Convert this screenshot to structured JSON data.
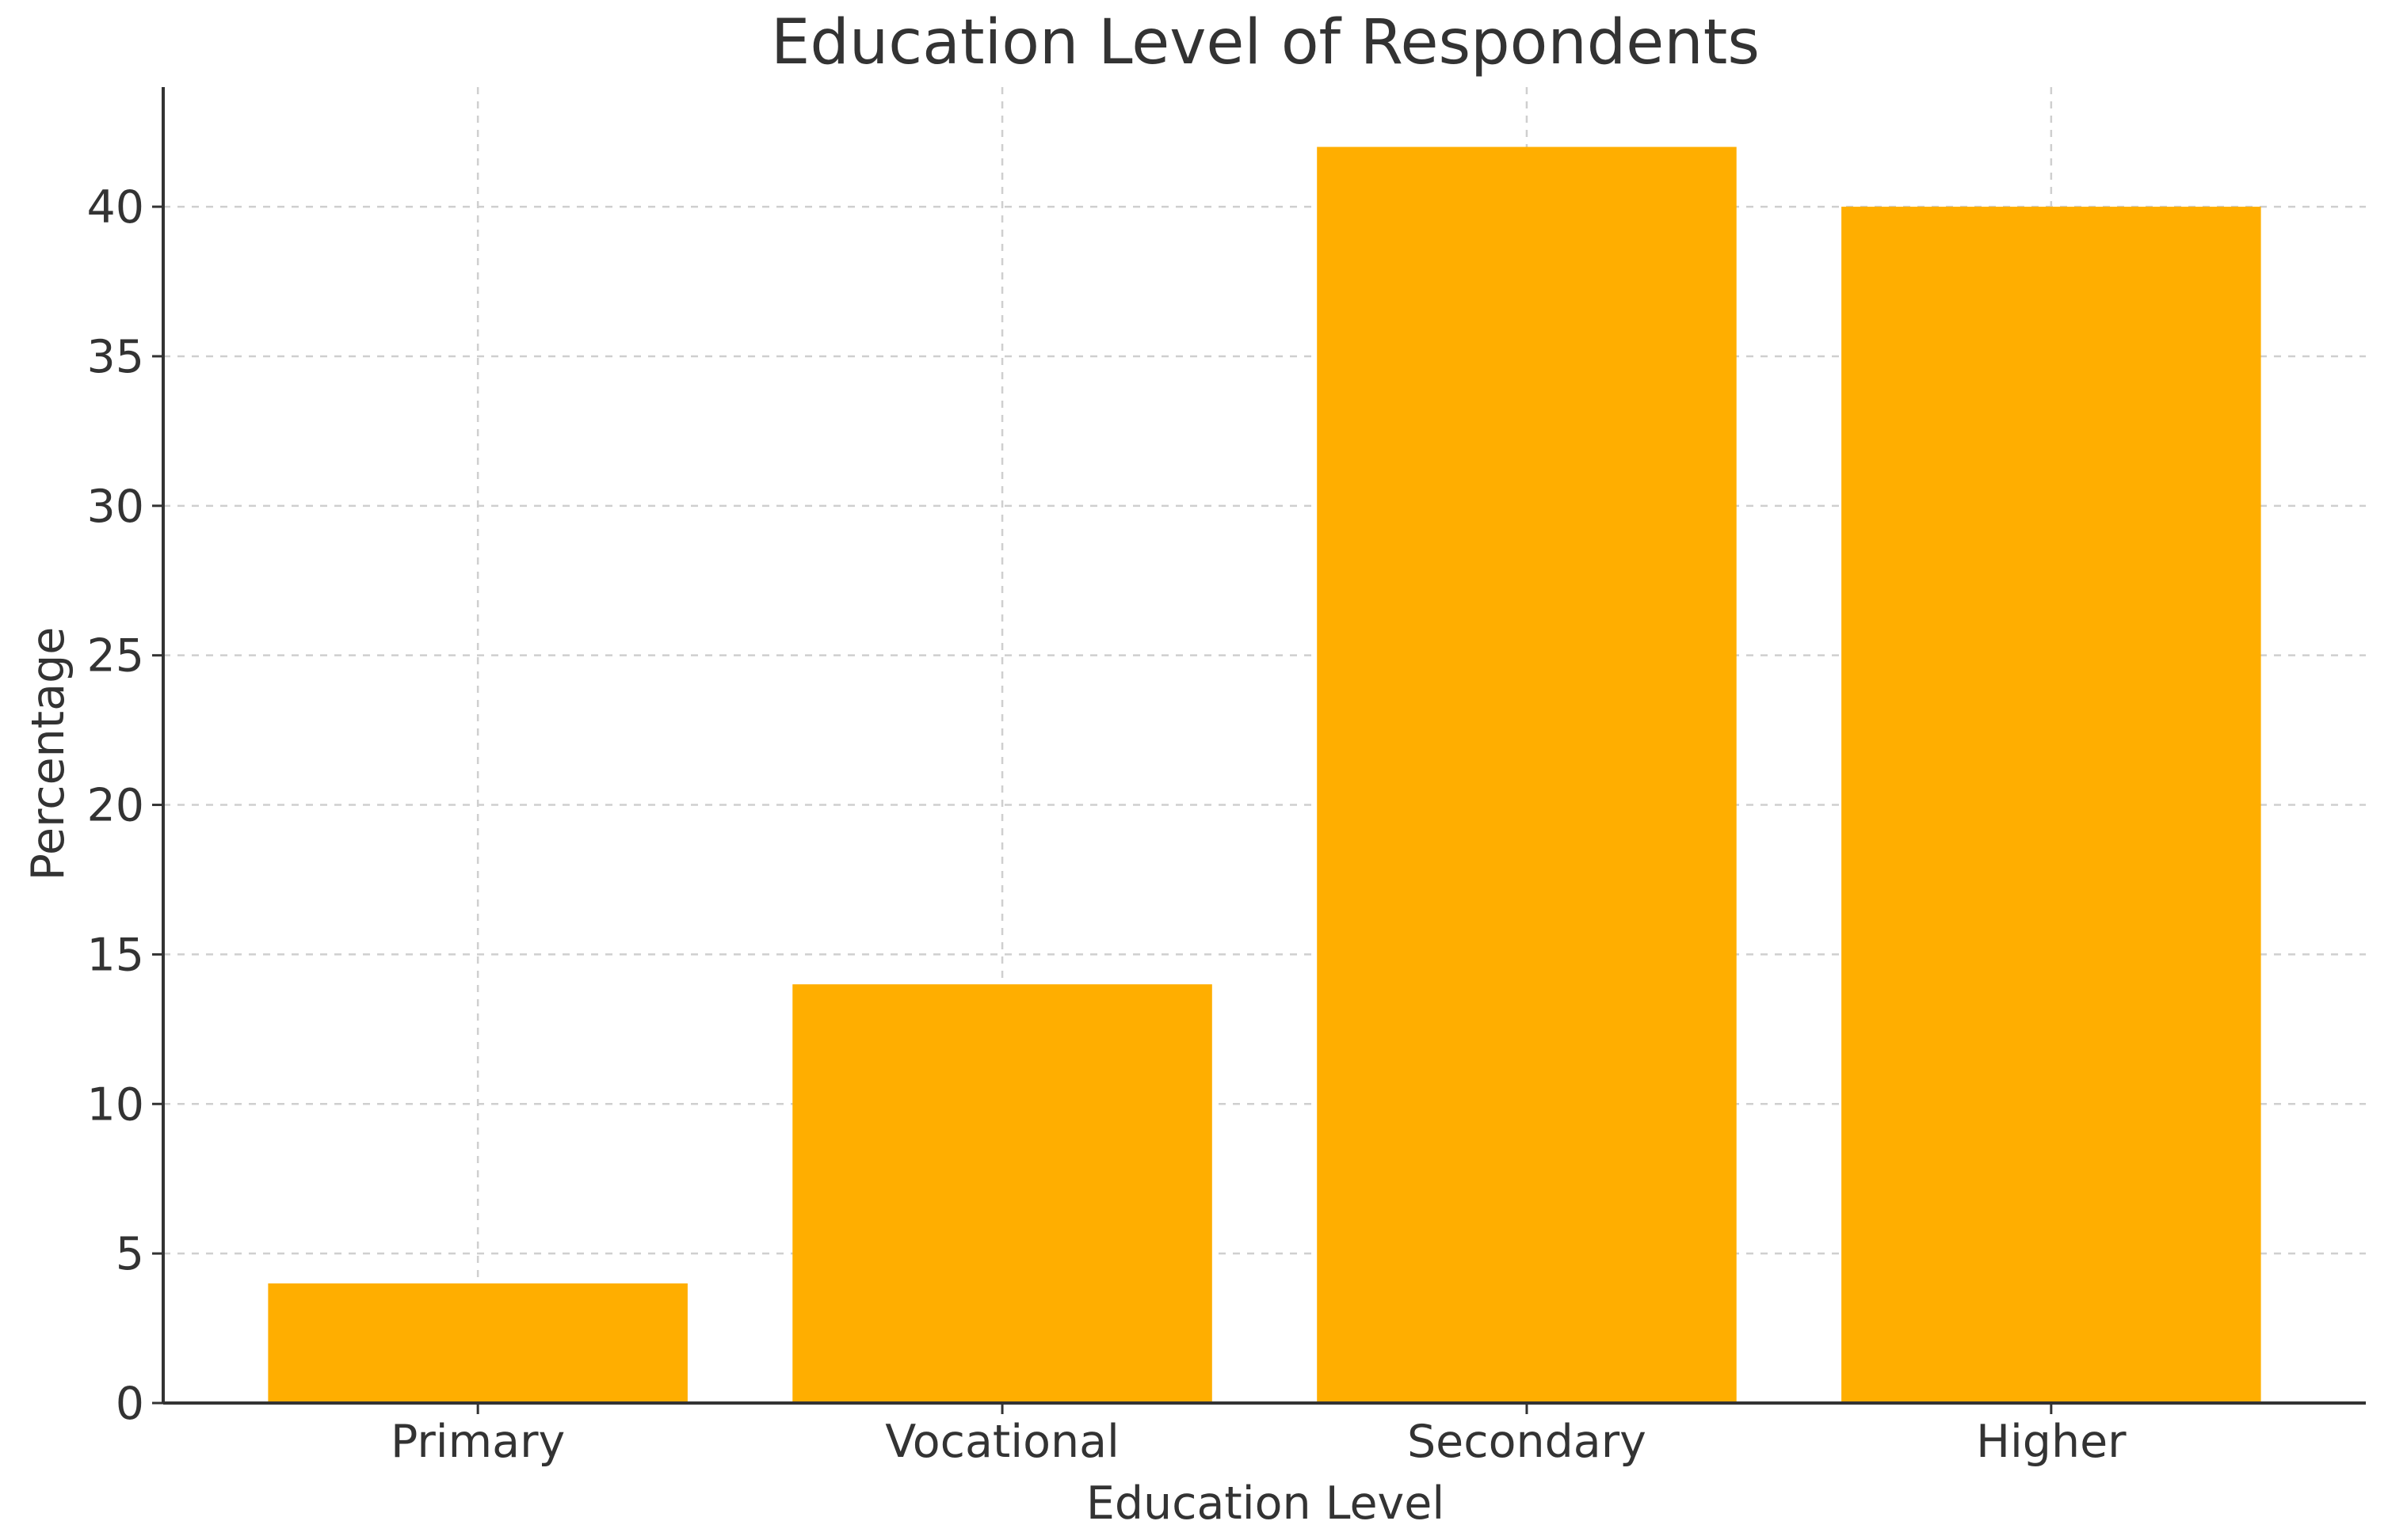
{
  "chart_data": {
    "type": "bar",
    "title": "Education Level of Respondents",
    "xlabel": "Education Level",
    "ylabel": "Percentage",
    "categories": [
      "Primary",
      "Vocational",
      "Secondary",
      "Higher"
    ],
    "values": [
      4,
      14,
      42,
      40
    ],
    "ylim": [
      0,
      44
    ],
    "yticks": [
      0,
      5,
      10,
      15,
      20,
      25,
      30,
      35,
      40
    ],
    "ytick_labels": [
      "0",
      "5",
      "10",
      "15",
      "20",
      "25",
      "30",
      "35",
      "40"
    ],
    "grid": true,
    "legend": "none",
    "bar_color": "#FFAE00"
  }
}
